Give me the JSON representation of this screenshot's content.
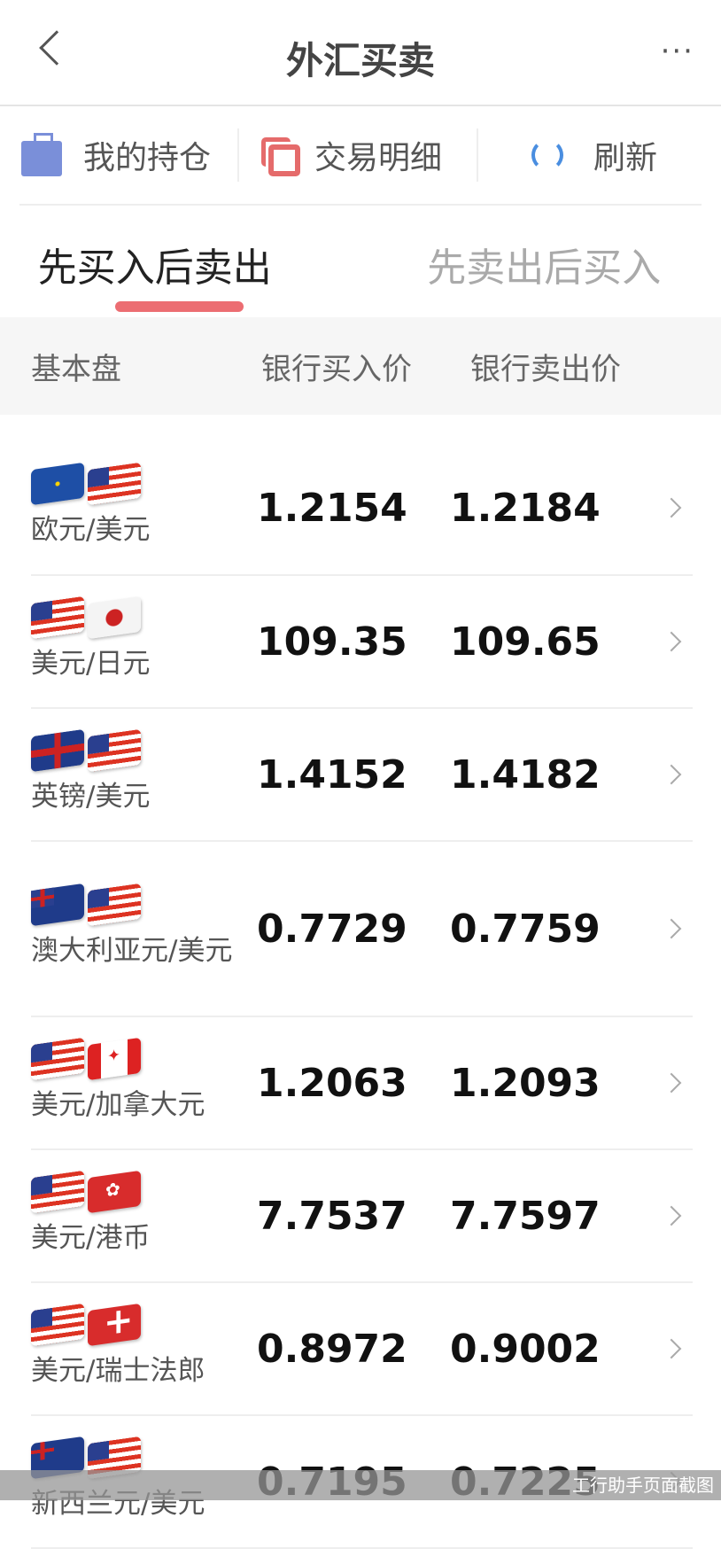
{
  "header": {
    "title": "外汇买卖",
    "more_icon": "···"
  },
  "toolbar": {
    "positions": "我的持仓",
    "details": "交易明细",
    "refresh": "刷新"
  },
  "tabs": [
    {
      "label": "先买入后卖出",
      "active": true
    },
    {
      "label": "先卖出后买入",
      "active": false
    }
  ],
  "columns": {
    "pair": "基本盘",
    "bank_buy": "银行买入价",
    "bank_sell": "银行卖出价"
  },
  "rows": [
    {
      "pair": "欧元/美元",
      "flags": [
        "eur",
        "usa"
      ],
      "buy": "1.2154",
      "sell": "1.2184"
    },
    {
      "pair": "美元/日元",
      "flags": [
        "usa",
        "jpn"
      ],
      "buy": "109.35",
      "sell": "109.65"
    },
    {
      "pair": "英镑/美元",
      "flags": [
        "gbr",
        "usa"
      ],
      "buy": "1.4152",
      "sell": "1.4182"
    },
    {
      "pair": "澳大利亚元/美元",
      "flags": [
        "aus",
        "usa"
      ],
      "buy": "0.7729",
      "sell": "0.7759"
    },
    {
      "pair": "美元/加拿大元",
      "flags": [
        "usa",
        "can"
      ],
      "buy": "1.2063",
      "sell": "1.2093"
    },
    {
      "pair": "美元/港币",
      "flags": [
        "usa",
        "hkg"
      ],
      "buy": "7.7537",
      "sell": "7.7597"
    },
    {
      "pair": "美元/瑞士法郎",
      "flags": [
        "usa",
        "che"
      ],
      "buy": "0.8972",
      "sell": "0.9002"
    },
    {
      "pair": "新西兰元/美元",
      "flags": [
        "nzl",
        "usa"
      ],
      "buy": "0.7195",
      "sell": "0.7225"
    }
  ],
  "watermark": "工行助手页面截图",
  "colors": {
    "accent": "#ec6d72",
    "refresh": "#4a8ee0",
    "briefcase": "#7a8fd9"
  }
}
